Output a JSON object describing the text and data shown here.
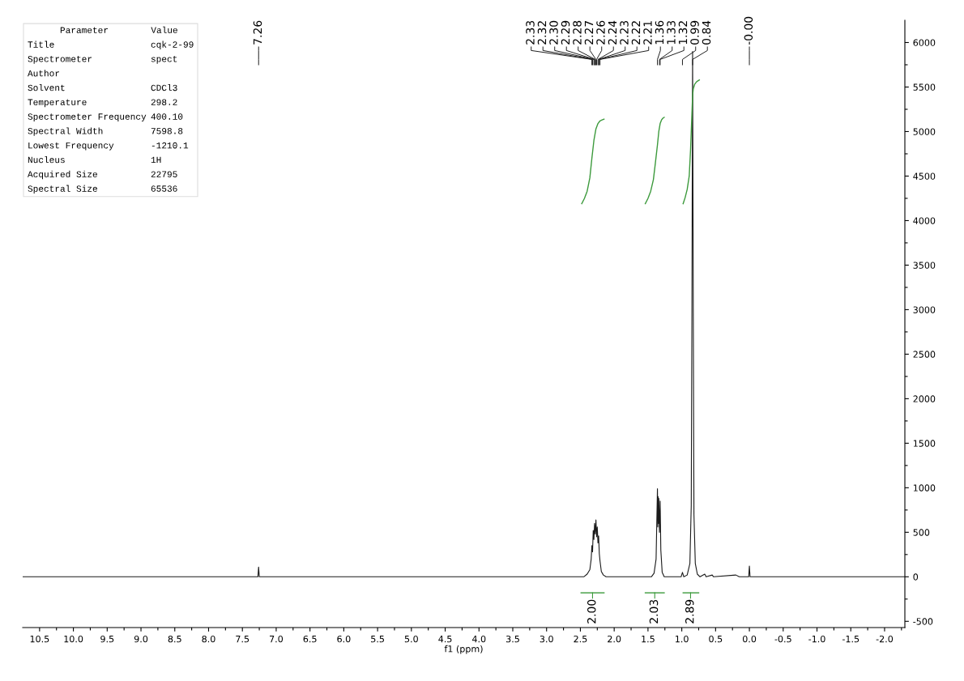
{
  "chart_data": {
    "type": "line",
    "xlabel": "f1 (ppm)",
    "xlim": [
      10.75,
      -2.3
    ],
    "ylim": [
      -570,
      6250
    ],
    "xticks": [
      {
        "value": 10.5,
        "label": "10.5"
      },
      {
        "value": 10.25,
        "label": null
      },
      {
        "value": 10.0,
        "label": "10.0"
      },
      {
        "value": 9.75,
        "label": null
      },
      {
        "value": 9.5,
        "label": "9.5"
      },
      {
        "value": 9.25,
        "label": null
      },
      {
        "value": 9.0,
        "label": "9.0"
      },
      {
        "value": 8.75,
        "label": null
      },
      {
        "value": 8.5,
        "label": "8.5"
      },
      {
        "value": 8.25,
        "label": null
      },
      {
        "value": 8.0,
        "label": "8.0"
      },
      {
        "value": 7.75,
        "label": null
      },
      {
        "value": 7.5,
        "label": "7.5"
      },
      {
        "value": 7.25,
        "label": null
      },
      {
        "value": 7.0,
        "label": "7.0"
      },
      {
        "value": 6.75,
        "label": null
      },
      {
        "value": 6.5,
        "label": "6.5"
      },
      {
        "value": 6.25,
        "label": null
      },
      {
        "value": 6.0,
        "label": "6.0"
      },
      {
        "value": 5.75,
        "label": null
      },
      {
        "value": 5.5,
        "label": "5.5"
      },
      {
        "value": 5.25,
        "label": null
      },
      {
        "value": 5.0,
        "label": "5.0"
      },
      {
        "value": 4.75,
        "label": null
      },
      {
        "value": 4.5,
        "label": "4.5"
      },
      {
        "value": 4.25,
        "label": null
      },
      {
        "value": 4.0,
        "label": "4.0"
      },
      {
        "value": 3.75,
        "label": null
      },
      {
        "value": 3.5,
        "label": "3.5"
      },
      {
        "value": 3.25,
        "label": null
      },
      {
        "value": 3.0,
        "label": "3.0"
      },
      {
        "value": 2.75,
        "label": null
      },
      {
        "value": 2.5,
        "label": "2.5"
      },
      {
        "value": 2.25,
        "label": null
      },
      {
        "value": 2.0,
        "label": "2.0"
      },
      {
        "value": 1.75,
        "label": null
      },
      {
        "value": 1.5,
        "label": "1.5"
      },
      {
        "value": 1.25,
        "label": null
      },
      {
        "value": 1.0,
        "label": "1.0"
      },
      {
        "value": 0.75,
        "label": null
      },
      {
        "value": 0.5,
        "label": "0.5"
      },
      {
        "value": 0.25,
        "label": null
      },
      {
        "value": 0.0,
        "label": "0.0"
      },
      {
        "value": -0.25,
        "label": null
      },
      {
        "value": -0.5,
        "label": "-0.5"
      },
      {
        "value": -0.75,
        "label": null
      },
      {
        "value": -1.0,
        "label": "-1.0"
      },
      {
        "value": -1.25,
        "label": null
      },
      {
        "value": -1.5,
        "label": "-1.5"
      },
      {
        "value": -1.75,
        "label": null
      },
      {
        "value": -2.0,
        "label": "-2.0"
      },
      {
        "value": -2.25,
        "label": null
      }
    ],
    "yticks": [
      {
        "value": -500,
        "label": "-500"
      },
      {
        "value": -250,
        "label": null
      },
      0,
      {
        "value": 250,
        "label": null
      },
      500,
      {
        "value": 750,
        "label": null
      },
      1000,
      {
        "value": 1250,
        "label": null
      },
      1500,
      {
        "value": 1750,
        "label": null
      },
      2000,
      {
        "value": 2250,
        "label": null
      },
      2500,
      {
        "value": 2750,
        "label": null
      },
      3000,
      {
        "value": 3250,
        "label": null
      },
      3500,
      {
        "value": 3750,
        "label": null
      },
      4000,
      {
        "value": 4250,
        "label": null
      },
      4500,
      {
        "value": 4750,
        "label": null
      },
      5000,
      {
        "value": 5250,
        "label": null
      },
      5500,
      {
        "value": 5750,
        "label": null
      },
      6000
    ],
    "grid": false,
    "legend": false,
    "marker": "none",
    "line_style": "solid",
    "series": [
      {
        "color": "#1a1a1a",
        "x": [
          10.75,
          7.3,
          7.27,
          7.26,
          7.25,
          2.45,
          2.4,
          2.36,
          2.34,
          2.33,
          2.32,
          2.31,
          2.3,
          2.29,
          2.28,
          2.27,
          2.26,
          2.25,
          2.24,
          2.23,
          2.22,
          2.21,
          2.19,
          2.16,
          2.12,
          1.45,
          1.41,
          1.38,
          1.37,
          1.36,
          1.355,
          1.35,
          1.345,
          1.34,
          1.33,
          1.32,
          1.31,
          1.29,
          1.26,
          1.01,
          0.99,
          0.97,
          0.92,
          0.88,
          0.86,
          0.85,
          0.84,
          0.83,
          0.82,
          0.8,
          0.77,
          0.73,
          0.66,
          0.64,
          0.55,
          0.53,
          0.2,
          0.15,
          0.01,
          0.0,
          -0.01,
          -2.3
        ],
        "values": [
          0,
          0,
          0,
          110,
          0,
          0,
          30,
          80,
          200,
          350,
          280,
          520,
          420,
          600,
          480,
          640,
          450,
          560,
          380,
          460,
          260,
          180,
          60,
          20,
          0,
          0,
          40,
          200,
          600,
          990,
          560,
          900,
          600,
          880,
          500,
          850,
          300,
          50,
          0,
          0,
          50,
          0,
          20,
          150,
          800,
          3000,
          5900,
          3000,
          700,
          150,
          30,
          0,
          30,
          0,
          20,
          0,
          20,
          0,
          0,
          120,
          0,
          0
        ]
      },
      {
        "color": "#3c9a3c",
        "x": [
          2.48,
          2.44,
          2.4,
          2.36,
          2.33,
          2.3,
          2.27,
          2.24,
          2.21,
          2.18,
          2.15
        ],
        "values": [
          4190,
          4250,
          4330,
          4480,
          4700,
          4900,
          5030,
          5090,
          5120,
          5130,
          5140
        ]
      },
      {
        "color": "#3c9a3c",
        "x": [
          1.54,
          1.5,
          1.46,
          1.42,
          1.39,
          1.36,
          1.34,
          1.32,
          1.3,
          1.28,
          1.26
        ],
        "values": [
          4190,
          4250,
          4330,
          4460,
          4650,
          4850,
          5000,
          5090,
          5130,
          5150,
          5160
        ]
      },
      {
        "color": "#3c9a3c",
        "x": [
          0.98,
          0.95,
          0.92,
          0.89,
          0.87,
          0.85,
          0.84,
          0.83,
          0.81,
          0.78,
          0.74
        ],
        "values": [
          4190,
          4260,
          4350,
          4500,
          4800,
          5200,
          5400,
          5480,
          5530,
          5560,
          5580
        ]
      },
      {
        "color": "#3c9a3c",
        "x": [
          2.49,
          2.15
        ],
        "values": [
          -180,
          -180
        ]
      },
      {
        "color": "#3c9a3c",
        "x": [
          1.54,
          1.26
        ],
        "values": [
          -180,
          -180
        ]
      },
      {
        "color": "#3c9a3c",
        "x": [
          0.98,
          0.75
        ],
        "values": [
          -180,
          -180
        ]
      }
    ],
    "annotations": [
      {
        "text": "7.26",
        "x": 7.26
      },
      {
        "text": "2.33",
        "x": 2.33
      },
      {
        "text": "2.32",
        "x": 2.32
      },
      {
        "text": "2.30",
        "x": 2.3
      },
      {
        "text": "2.29",
        "x": 2.29
      },
      {
        "text": "2.28",
        "x": 2.28
      },
      {
        "text": "2.27",
        "x": 2.27
      },
      {
        "text": "2.26",
        "x": 2.26
      },
      {
        "text": "2.24",
        "x": 2.24
      },
      {
        "text": "2.23",
        "x": 2.23
      },
      {
        "text": "2.22",
        "x": 2.22
      },
      {
        "text": "2.21",
        "x": 2.21
      },
      {
        "text": "1.36",
        "x": 1.36
      },
      {
        "text": "1.33",
        "x": 1.33
      },
      {
        "text": "1.32",
        "x": 1.32
      },
      {
        "text": "0.99",
        "x": 0.99
      },
      {
        "text": "0.84",
        "x": 0.84
      },
      {
        "text": "-0.00",
        "x": 0.0
      },
      {
        "text": "2.00",
        "x": 2.32,
        "y": -180
      },
      {
        "text": "2.03",
        "x": 1.4,
        "y": -180
      },
      {
        "text": "2.89",
        "x": 0.87,
        "y": -180
      },
      "Parameter\tValue",
      "Title\tcqk-2-99",
      "Spectrometer\tspect",
      "Author\t",
      "Solvent\tCDCl3",
      "Temperature\t298.2",
      "Spectrometer Frequency\t400.10",
      "Spectral Width\t7598.8",
      "Lowest Frequency\t-1210.1",
      "Nucleus\t1H",
      "Acquired Size\t22795",
      "Spectral Size\t65536"
    ]
  }
}
